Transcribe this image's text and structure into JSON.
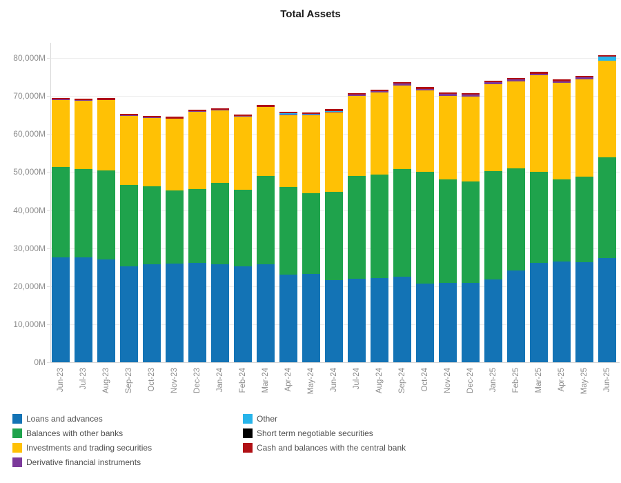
{
  "title": "Total Assets",
  "chart_data": {
    "type": "bar",
    "stacked": true,
    "title": "Total Assets",
    "xlabel": "",
    "ylabel": "",
    "ylim": [
      0,
      80000
    ],
    "ytick_step": 10000,
    "ytick_suffix": "M",
    "grid": true,
    "legend_position": "bottom",
    "categories": [
      "Jun-23",
      "Jul-23",
      "Aug-23",
      "Sep-23",
      "Oct-23",
      "Nov-23",
      "Dec-23",
      "Jan-24",
      "Feb-24",
      "Mar-24",
      "Apr-24",
      "May-24",
      "Jun-24",
      "Jul-24",
      "Aug-24",
      "Sep-24",
      "Oct-24",
      "Nov-24",
      "Dec-24",
      "Jan-25",
      "Feb-25",
      "Mar-25",
      "Apr-25",
      "May-25",
      "Jun-25"
    ],
    "series": [
      {
        "name": "Loans and advances",
        "color": "#1373B5",
        "values": [
          27500,
          27600,
          27100,
          25200,
          25700,
          25900,
          26200,
          25800,
          25300,
          25800,
          23100,
          23200,
          21500,
          21900,
          22100,
          22500,
          20600,
          20800,
          20900,
          21800,
          24100,
          26100,
          26500,
          26300,
          27400
        ]
      },
      {
        "name": "Balances with other banks",
        "color": "#1FA34C",
        "values": [
          23900,
          23200,
          23400,
          21400,
          20600,
          19300,
          19300,
          21300,
          20000,
          23200,
          22900,
          21300,
          23300,
          27000,
          27200,
          28300,
          29400,
          27200,
          26600,
          28500,
          26900,
          23900,
          21600,
          22500,
          26500
        ]
      },
      {
        "name": "Investments and trading securities",
        "color": "#FFC105",
        "values": [
          17600,
          18000,
          18400,
          18200,
          18000,
          18800,
          20400,
          19200,
          19300,
          18100,
          19000,
          20400,
          20900,
          21200,
          21700,
          22000,
          21400,
          22100,
          22400,
          22800,
          22900,
          25400,
          25300,
          25600,
          25300
        ]
      },
      {
        "name": "Derivative financial instruments",
        "color": "#7C3A9B",
        "values": [
          100,
          100,
          100,
          100,
          100,
          100,
          100,
          100,
          100,
          100,
          150,
          150,
          150,
          250,
          250,
          500,
          500,
          500,
          500,
          500,
          500,
          500,
          500,
          500,
          150
        ]
      },
      {
        "name": "Other",
        "color": "#27B4EA",
        "values": [
          0,
          0,
          0,
          0,
          0,
          0,
          0,
          0,
          0,
          0,
          250,
          250,
          250,
          0,
          0,
          0,
          0,
          0,
          0,
          0,
          0,
          0,
          0,
          0,
          950
        ]
      },
      {
        "name": "Short term negotiable securities",
        "color": "#000000",
        "values": [
          0,
          0,
          0,
          0,
          0,
          0,
          0,
          0,
          0,
          0,
          0,
          0,
          0,
          0,
          0,
          0,
          0,
          0,
          0,
          0,
          0,
          0,
          0,
          0,
          0
        ]
      },
      {
        "name": "Cash and balances with the central bank",
        "color": "#B01015",
        "values": [
          400,
          400,
          400,
          400,
          400,
          400,
          400,
          400,
          400,
          400,
          400,
          400,
          400,
          400,
          400,
          400,
          400,
          400,
          400,
          400,
          400,
          400,
          400,
          400,
          450
        ]
      }
    ]
  },
  "legend": {
    "columns": [
      [
        "Loans and advances",
        "Balances with other banks",
        "Investments and trading securities",
        "Derivative financial instruments"
      ],
      [
        "Other",
        "Short term negotiable securities",
        "Cash and balances with the central bank"
      ]
    ]
  }
}
